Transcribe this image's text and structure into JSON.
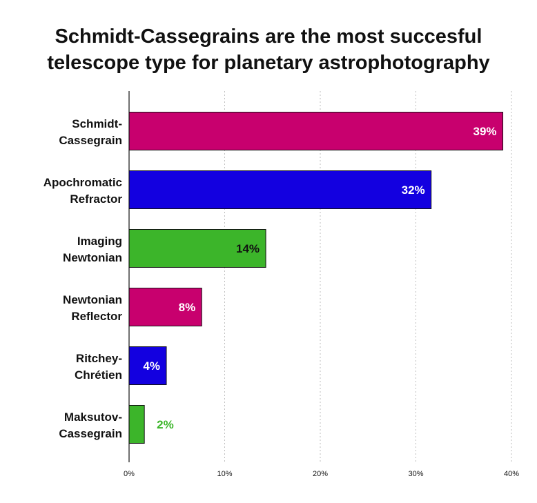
{
  "chart_data": {
    "type": "bar",
    "orientation": "horizontal",
    "title_lines": [
      "Schmidt-Cassegrains are the most succesful",
      "telescope type for planetary astrophotography"
    ],
    "categories": [
      [
        "Schmidt-",
        "Cassegrain"
      ],
      [
        "Apochromatic",
        "Refractor"
      ],
      [
        "Imaging",
        "Newtonian"
      ],
      [
        "Newtonian",
        "Reflector"
      ],
      [
        "Ritchey-",
        "Chrétien"
      ],
      [
        "Maksutov-",
        "Cassegrain"
      ]
    ],
    "values": [
      39.1,
      31.6,
      14.3,
      7.6,
      3.9,
      1.6
    ],
    "data_labels": [
      "39%",
      "32%",
      "14%",
      "8%",
      "4%",
      "2%"
    ],
    "colors": [
      "#c8006e",
      "#1300e0",
      "#3cb52a",
      "#c8006e",
      "#1300e0",
      "#3cb52a"
    ],
    "xlim": [
      0,
      40
    ],
    "x_ticks": [
      0,
      10,
      20,
      30,
      40
    ],
    "x_tick_labels": [
      "0%",
      "10%",
      "20%",
      "30%",
      "40%"
    ],
    "grid": "vertical dashed",
    "legend": "none"
  }
}
